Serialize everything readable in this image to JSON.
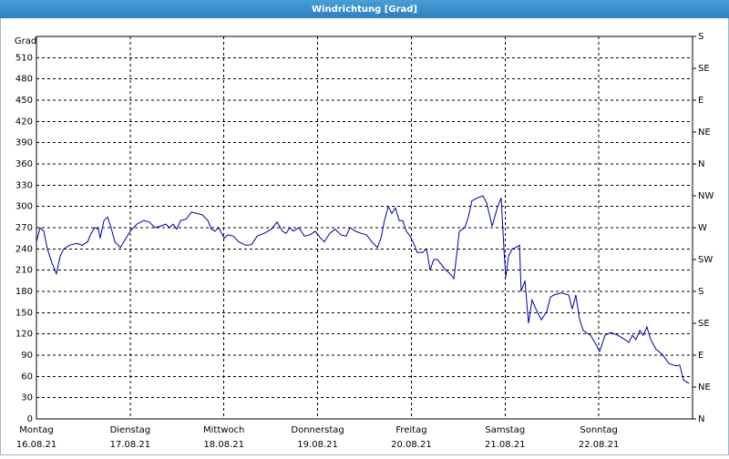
{
  "chart_data": {
    "type": "line",
    "title": "Windrichtung [Grad]",
    "y_label": "Grad",
    "color": "#0000a0",
    "xlim": [
      0,
      168
    ],
    "xticks": [
      {
        "value": 0,
        "label": "Montag",
        "date": "16.08.21"
      },
      {
        "value": 24,
        "label": "Dienstag",
        "date": "17.08.21"
      },
      {
        "value": 48,
        "label": "Mittwoch",
        "date": "18.08.21"
      },
      {
        "value": 72,
        "label": "Donnerstag",
        "date": "19.08.21"
      },
      {
        "value": 96,
        "label": "Freitag",
        "date": "20.08.21"
      },
      {
        "value": 120,
        "label": "Samstag",
        "date": "21.08.21"
      },
      {
        "value": 144,
        "label": "Sonntag",
        "date": "22.08.21"
      }
    ],
    "ylim": [
      0,
      540
    ],
    "yticks": [
      0,
      30,
      60,
      90,
      120,
      150,
      180,
      210,
      240,
      270,
      300,
      330,
      360,
      390,
      420,
      450,
      480,
      510
    ],
    "y2lim": [
      0,
      540
    ],
    "y2ticks": [
      {
        "value": 0,
        "label": "N"
      },
      {
        "value": 45,
        "label": "NE"
      },
      {
        "value": 90,
        "label": "E"
      },
      {
        "value": 135,
        "label": "SE"
      },
      {
        "value": 180,
        "label": "S"
      },
      {
        "value": 225,
        "label": "SW"
      },
      {
        "value": 270,
        "label": "W"
      },
      {
        "value": 315,
        "label": "NW"
      },
      {
        "value": 360,
        "label": "N"
      },
      {
        "value": 405,
        "label": "NE"
      },
      {
        "value": 450,
        "label": "E"
      },
      {
        "value": 495,
        "label": "SE"
      },
      {
        "value": 540,
        "label": "S"
      }
    ],
    "grid": true,
    "x": [
      0,
      0.9,
      1.9,
      2.8,
      4.0,
      5.1,
      6.1,
      7.0,
      8.4,
      10.3,
      11.7,
      13.1,
      14.0,
      14.9,
      15.9,
      16.3,
      17.3,
      18.2,
      19.1,
      20.1,
      21.5,
      22.9,
      24.0,
      25.7,
      27.5,
      28.9,
      30.3,
      31.7,
      33.1,
      34.1,
      35.0,
      35.9,
      36.9,
      38.3,
      39.7,
      41.1,
      42.5,
      43.9,
      44.8,
      45.7,
      46.7,
      48.1,
      49.0,
      50.4,
      51.8,
      53.7,
      55.1,
      56.5,
      58.3,
      60.2,
      61.6,
      63.0,
      63.9,
      64.9,
      65.8,
      67.2,
      68.6,
      70.0,
      71.4,
      72.8,
      73.7,
      75.1,
      76.5,
      77.9,
      79.3,
      80.3,
      81.7,
      83.1,
      84.5,
      85.9,
      87.3,
      88.2,
      89.1,
      90.1,
      91.0,
      91.9,
      92.9,
      93.8,
      94.7,
      95.7,
      96.8,
      97.5,
      98.9,
      99.9,
      100.8,
      101.7,
      102.7,
      104.5,
      105.9,
      106.9,
      108.3,
      109.7,
      110.6,
      111.5,
      112.9,
      114.3,
      115.3,
      116.7,
      118.1,
      119.0,
      119.7,
      120.2,
      120.9,
      121.8,
      122.7,
      123.7,
      124.1,
      125.1,
      126.0,
      126.9,
      127.9,
      129.3,
      130.7,
      131.6,
      132.5,
      134.4,
      136.3,
      137.2,
      138.1,
      139.1,
      140.0,
      141.9,
      143.3,
      144.2,
      145.6,
      147.0,
      148.9,
      150.7,
      151.7,
      152.6,
      153.5,
      154.5,
      155.4,
      156.3,
      157.3,
      158.7,
      160.1,
      162.0,
      163.8,
      164.7,
      165.7,
      167.1
    ],
    "values": [
      250,
      270,
      265,
      240,
      220,
      205,
      230,
      240,
      245,
      248,
      245,
      250,
      262,
      270,
      268,
      255,
      280,
      285,
      270,
      250,
      242,
      255,
      265,
      275,
      280,
      278,
      270,
      272,
      275,
      270,
      275,
      268,
      280,
      282,
      292,
      290,
      288,
      280,
      268,
      265,
      270,
      255,
      260,
      258,
      250,
      245,
      246,
      258,
      262,
      268,
      278,
      265,
      262,
      270,
      265,
      270,
      258,
      260,
      265,
      255,
      250,
      262,
      268,
      260,
      258,
      270,
      265,
      262,
      260,
      250,
      242,
      255,
      280,
      300,
      290,
      298,
      280,
      280,
      265,
      258,
      245,
      235,
      235,
      240,
      210,
      225,
      225,
      212,
      205,
      198,
      265,
      270,
      285,
      308,
      312,
      315,
      305,
      272,
      300,
      312,
      240,
      200,
      230,
      240,
      242,
      245,
      180,
      195,
      135,
      168,
      155,
      140,
      152,
      172,
      175,
      178,
      175,
      155,
      175,
      140,
      125,
      118,
      105,
      95,
      118,
      122,
      118,
      112,
      108,
      118,
      112,
      125,
      118,
      130,
      112,
      98,
      92,
      78,
      75,
      76,
      55,
      50
    ]
  }
}
